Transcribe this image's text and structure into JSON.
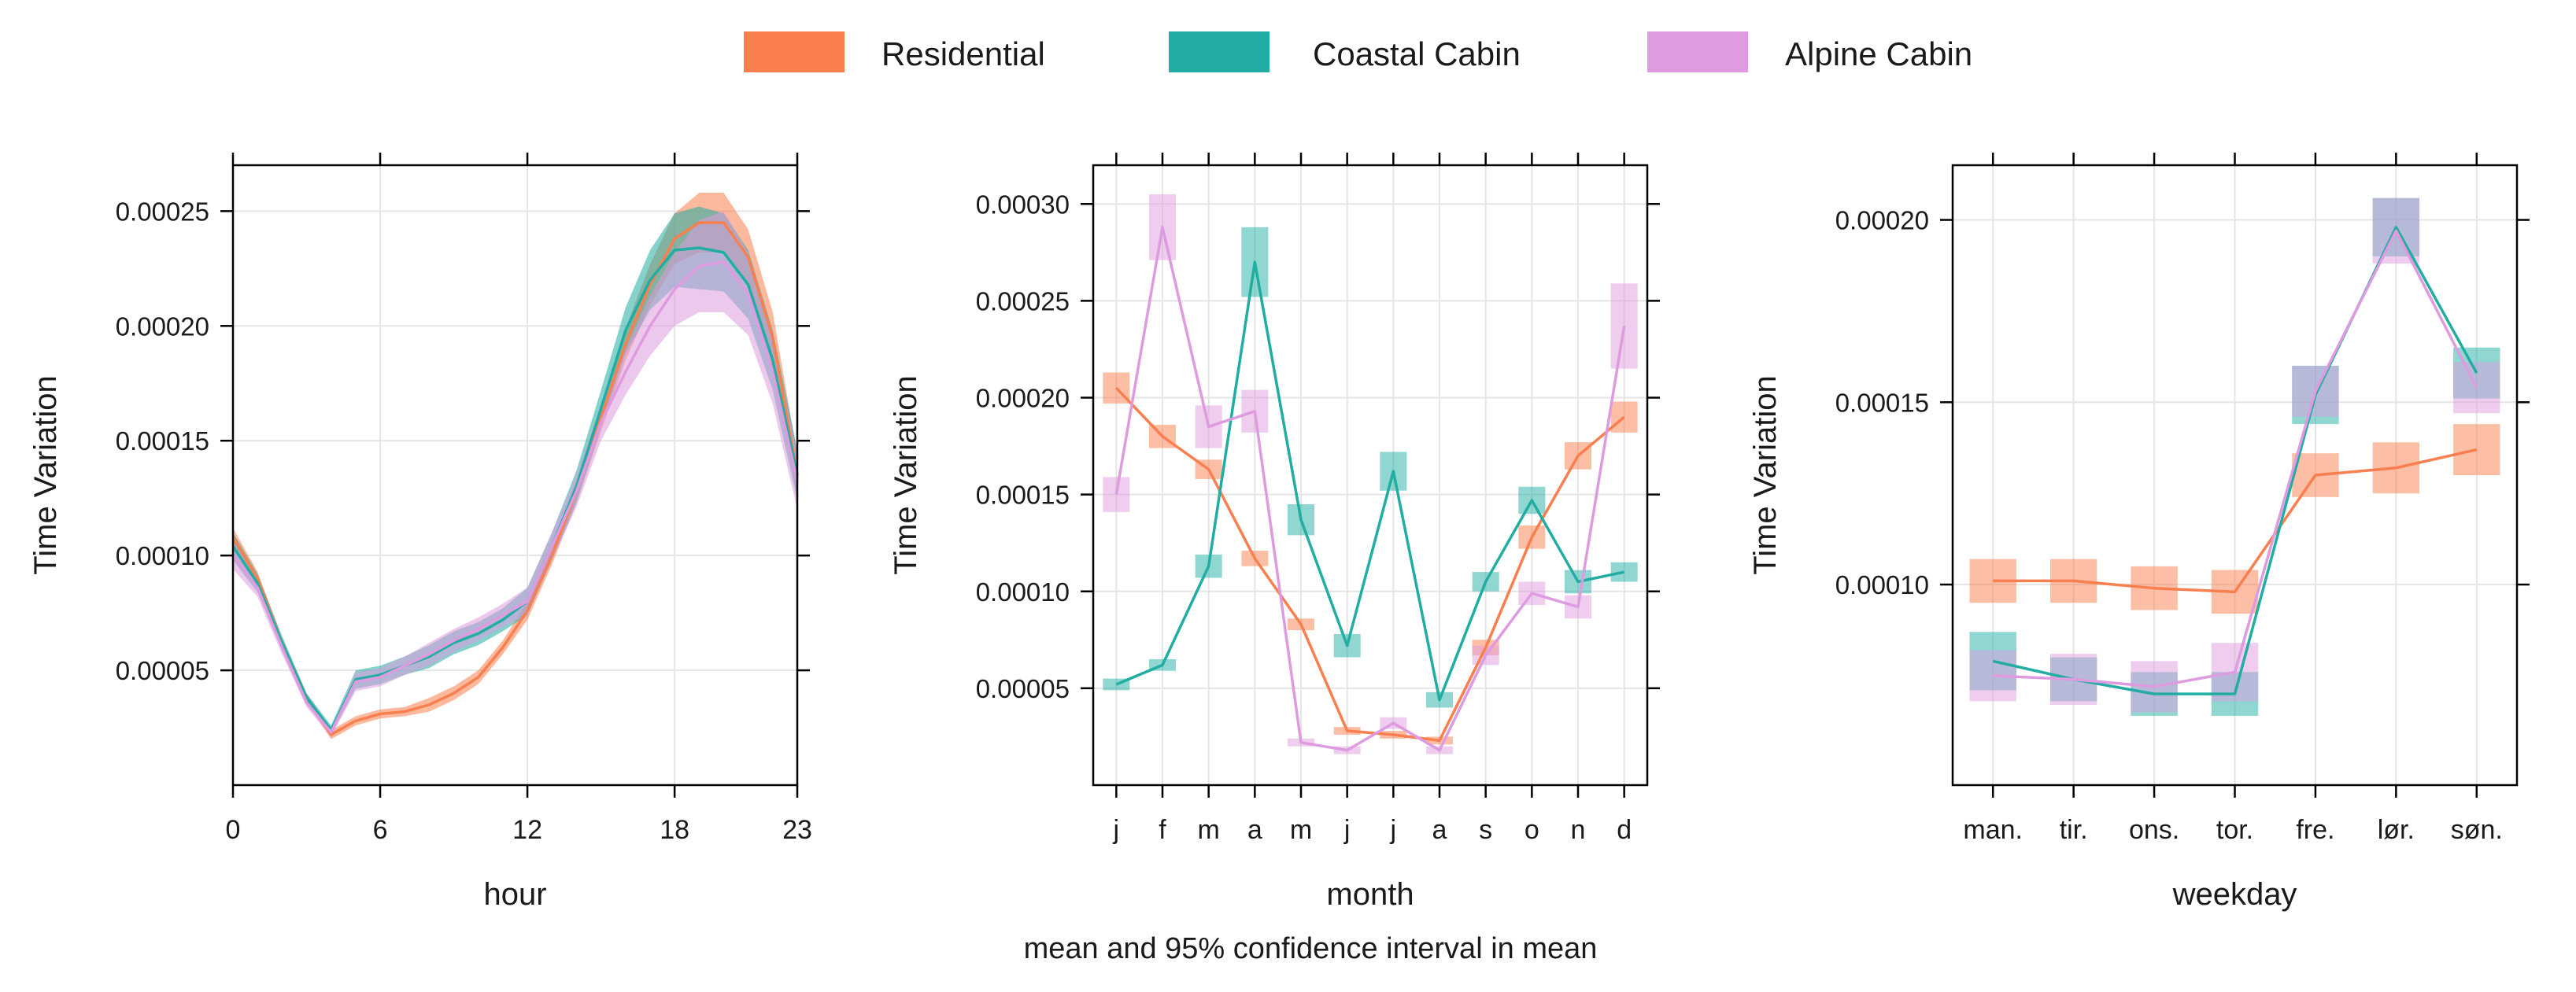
{
  "colors": {
    "residential": "#FA7F4E",
    "coastal": "#21ADA3",
    "alpine": "#DE9BDF",
    "overlap": "#9DAED6",
    "grid": "#e5e5e5",
    "axis": "#000000"
  },
  "legend": [
    {
      "key": "residential",
      "label": "Residential"
    },
    {
      "key": "coastal",
      "label": "Coastal Cabin"
    },
    {
      "key": "alpine",
      "label": "Alpine Cabin"
    }
  ],
  "subtitle": "mean and 95% confidence interval in mean",
  "chart_data": [
    {
      "type": "line",
      "name": "hour-panel",
      "xlabel": "hour",
      "ylabel": "Time Variation",
      "xlim": [
        0,
        23
      ],
      "ylim": [
        0.0,
        0.00027
      ],
      "xticks": [
        0,
        6,
        12,
        18,
        23
      ],
      "xtick_labels": [
        "0",
        "6",
        "12",
        "18",
        "23"
      ],
      "yticks": [
        5e-05,
        0.0001,
        0.00015,
        0.0002,
        0.00025
      ],
      "ytick_labels": [
        "0.00005",
        "0.00010",
        "0.00015",
        "0.00020",
        "0.00025"
      ],
      "band": true,
      "series": [
        {
          "key": "residential",
          "name": "Residential",
          "x": [
            0,
            1,
            2,
            3,
            4,
            5,
            6,
            7,
            8,
            9,
            10,
            11,
            12,
            13,
            14,
            15,
            16,
            17,
            18,
            19,
            20,
            21,
            22,
            23
          ],
          "values": [
            0.000108,
            9e-05,
            6.2e-05,
            3.8e-05,
            2.2e-05,
            2.8e-05,
            3.1e-05,
            3.2e-05,
            3.5e-05,
            4e-05,
            4.7e-05,
            6e-05,
            7.6e-05,
            0.0001,
            0.000128,
            0.00016,
            0.000192,
            0.000218,
            0.000238,
            0.000245,
            0.000245,
            0.00023,
            0.000195,
            0.000135
          ],
          "ci": [
            4e-06,
            3e-06,
            2e-06,
            2e-06,
            2e-06,
            2e-06,
            2e-06,
            2e-06,
            3e-06,
            3e-06,
            3e-06,
            3e-06,
            4e-06,
            4e-06,
            5e-06,
            6e-06,
            7e-06,
            9e-06,
            1.1e-05,
            1.3e-05,
            1.3e-05,
            1.2e-05,
            1.1e-05,
            9e-06
          ]
        },
        {
          "key": "coastal",
          "name": "Coastal Cabin",
          "x": [
            0,
            1,
            2,
            3,
            4,
            5,
            6,
            7,
            8,
            9,
            10,
            11,
            12,
            13,
            14,
            15,
            16,
            17,
            18,
            19,
            20,
            21,
            22,
            23
          ],
          "values": [
            0.000104,
            8.8e-05,
            6.2e-05,
            3.8e-05,
            2.4e-05,
            4.6e-05,
            4.8e-05,
            5.2e-05,
            5.6e-05,
            6.2e-05,
            6.6e-05,
            7.2e-05,
            8e-05,
            0.000104,
            0.00013,
            0.000164,
            0.000198,
            0.00022,
            0.000233,
            0.000234,
            0.000232,
            0.000218,
            0.000185,
            0.000135
          ],
          "ci": [
            6e-06,
            4e-06,
            3e-06,
            2e-06,
            2e-06,
            4e-06,
            4e-06,
            4e-06,
            5e-06,
            5e-06,
            5e-06,
            5e-06,
            6e-06,
            6e-06,
            7e-06,
            8e-06,
            1e-05,
            1.3e-05,
            1.6e-05,
            1.8e-05,
            1.7e-05,
            1.5e-05,
            1.3e-05,
            1.1e-05
          ]
        },
        {
          "key": "alpine",
          "name": "Alpine Cabin",
          "x": [
            0,
            1,
            2,
            3,
            4,
            5,
            6,
            7,
            8,
            9,
            10,
            11,
            12,
            13,
            14,
            15,
            16,
            17,
            18,
            19,
            20,
            21,
            22,
            23
          ],
          "values": [
            0.0001,
            8.6e-05,
            6e-05,
            3.6e-05,
            2.3e-05,
            4.5e-05,
            4.7e-05,
            5.2e-05,
            5.7e-05,
            6.3e-05,
            6.8e-05,
            7.4e-05,
            8e-05,
            0.000104,
            0.000128,
            0.000158,
            0.00018,
            0.0002,
            0.000216,
            0.000226,
            0.000228,
            0.000214,
            0.00018,
            0.000132
          ],
          "ci": [
            6e-06,
            4e-06,
            3e-06,
            2e-06,
            2e-06,
            4e-06,
            4e-06,
            4e-06,
            5e-06,
            5e-06,
            5e-06,
            5e-06,
            6e-06,
            6e-06,
            7e-06,
            8e-06,
            1e-05,
            1.3e-05,
            1.6e-05,
            2e-05,
            2.2e-05,
            1.8e-05,
            1.4e-05,
            1.2e-05
          ]
        }
      ]
    },
    {
      "type": "line",
      "name": "month-panel",
      "xlabel": "month",
      "ylabel": "Time Variation",
      "categories": [
        "j",
        "f",
        "m",
        "a",
        "m",
        "j",
        "j",
        "a",
        "s",
        "o",
        "n",
        "d"
      ],
      "ylim": [
        0.0,
        0.00032
      ],
      "yticks": [
        5e-05,
        0.0001,
        0.00015,
        0.0002,
        0.00025,
        0.0003
      ],
      "ytick_labels": [
        "0.00005",
        "0.00010",
        "0.00015",
        "0.00020",
        "0.00025",
        "0.00030"
      ],
      "band": false,
      "series": [
        {
          "key": "residential",
          "name": "Residential",
          "values": [
            0.000205,
            0.00018,
            0.000163,
            0.000117,
            8.3e-05,
            2.8e-05,
            2.6e-05,
            2.3e-05,
            7.1e-05,
            0.000128,
            0.00017,
            0.00019
          ],
          "ci": [
            8e-06,
            6e-06,
            5e-06,
            4e-06,
            3e-06,
            2e-06,
            2e-06,
            2e-06,
            4e-06,
            6e-06,
            7e-06,
            8e-06
          ]
        },
        {
          "key": "coastal",
          "name": "Coastal Cabin",
          "values": [
            5.2e-05,
            6.2e-05,
            0.000113,
            0.00027,
            0.000137,
            7.2e-05,
            0.000162,
            4.4e-05,
            0.000105,
            0.000147,
            0.000105,
            0.00011
          ],
          "ci": [
            3e-06,
            3e-06,
            6e-06,
            1.8e-05,
            8e-06,
            6e-06,
            1e-05,
            4e-06,
            5e-06,
            7e-06,
            6e-06,
            5e-06
          ]
        },
        {
          "key": "alpine",
          "name": "Alpine Cabin",
          "values": [
            0.00015,
            0.000288,
            0.000185,
            0.000193,
            2.2e-05,
            1.8e-05,
            3.2e-05,
            1.8e-05,
            6.7e-05,
            9.9e-05,
            9.2e-05,
            0.000237
          ],
          "ci": [
            9e-06,
            1.7e-05,
            1.1e-05,
            1.1e-05,
            2e-06,
            2e-06,
            3e-06,
            2e-06,
            5e-06,
            6e-06,
            6e-06,
            2.2e-05
          ]
        }
      ]
    },
    {
      "type": "line",
      "name": "weekday-panel",
      "xlabel": "weekday",
      "ylabel": "Time Variation",
      "categories": [
        "man.",
        "tir.",
        "ons.",
        "tor.",
        "fre.",
        "lør.",
        "søn."
      ],
      "ylim": [
        4.5e-05,
        0.000215
      ],
      "yticks": [
        0.0001,
        0.00015,
        0.0002
      ],
      "ytick_labels": [
        "0.00010",
        "0.00015",
        "0.00020"
      ],
      "band": false,
      "series": [
        {
          "key": "residential",
          "name": "Residential",
          "values": [
            0.000101,
            0.000101,
            9.9e-05,
            9.8e-05,
            0.00013,
            0.000132,
            0.000137
          ],
          "ci": [
            6e-06,
            6e-06,
            6e-06,
            6e-06,
            6e-06,
            7e-06,
            7e-06
          ]
        },
        {
          "key": "coastal",
          "name": "Coastal Cabin",
          "values": [
            7.9e-05,
            7.4e-05,
            7e-05,
            7e-05,
            0.000152,
            0.000198,
            0.000158
          ],
          "ci": [
            8e-06,
            6e-06,
            6e-06,
            6e-06,
            8e-06,
            8e-06,
            7e-06
          ]
        },
        {
          "key": "alpine",
          "name": "Alpine Cabin",
          "values": [
            7.5e-05,
            7.4e-05,
            7.2e-05,
            7.6e-05,
            0.000153,
            0.000197,
            0.000154
          ],
          "ci": [
            7e-06,
            7e-06,
            7e-06,
            8e-06,
            7e-06,
            9e-06,
            7e-06
          ]
        }
      ]
    }
  ]
}
